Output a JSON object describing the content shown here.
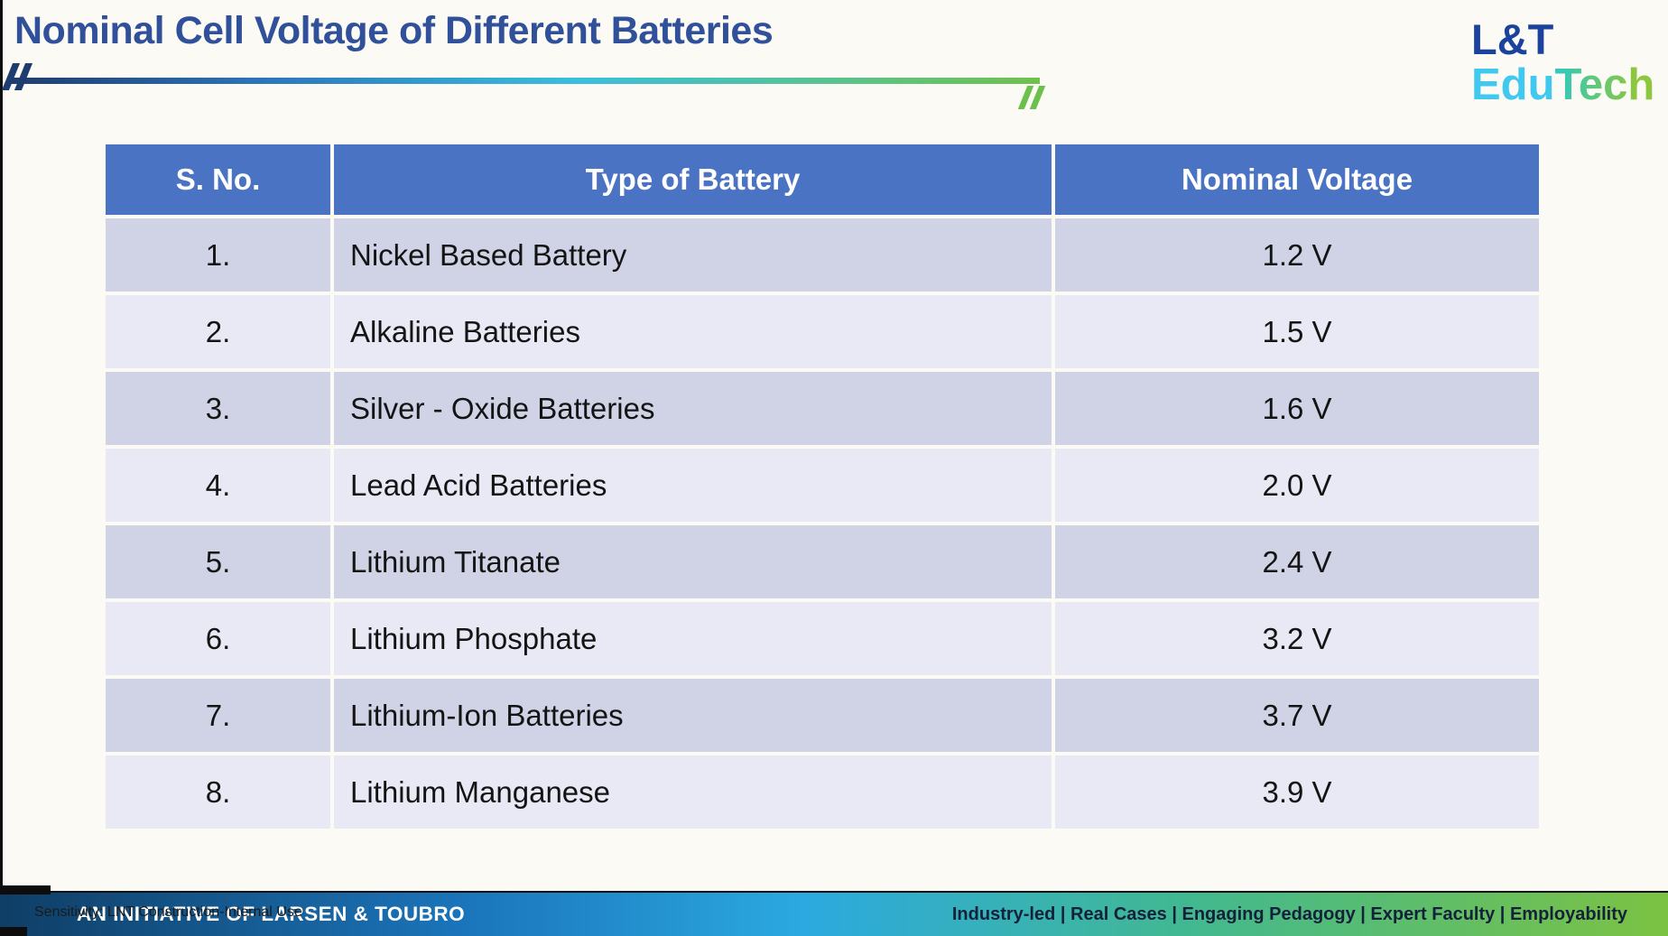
{
  "slide": {
    "title": "Nominal Cell Voltage of Different Batteries"
  },
  "logo": {
    "top": "L&T",
    "bottom_cyan": "Edu",
    "bottom_green": "Tech"
  },
  "table": {
    "headers": {
      "sno": "S. No.",
      "type": "Type of Battery",
      "voltage": "Nominal Voltage"
    },
    "rows": [
      {
        "sno": "1.",
        "type": "Nickel Based Battery",
        "voltage": "1.2 V"
      },
      {
        "sno": "2.",
        "type": "Alkaline Batteries",
        "voltage": "1.5 V"
      },
      {
        "sno": "3.",
        "type": "Silver - Oxide Batteries",
        "voltage": "1.6 V"
      },
      {
        "sno": "4.",
        "type": "Lead Acid Batteries",
        "voltage": "2.0 V"
      },
      {
        "sno": "5.",
        "type": "Lithium Titanate",
        "voltage": "2.4 V"
      },
      {
        "sno": "6.",
        "type": "Lithium Phosphate",
        "voltage": "3.2 V"
      },
      {
        "sno": "7.",
        "type": "Lithium-Ion Batteries",
        "voltage": "3.7 V"
      },
      {
        "sno": "8.",
        "type": "Lithium Manganese",
        "voltage": "3.9 V"
      }
    ]
  },
  "chart_data": {
    "type": "table",
    "title": "Nominal Cell Voltage of Different Batteries",
    "columns": [
      "S. No.",
      "Type of Battery",
      "Nominal Voltage"
    ],
    "categories": [
      "Nickel Based Battery",
      "Alkaline Batteries",
      "Silver - Oxide Batteries",
      "Lead Acid Batteries",
      "Lithium Titanate",
      "Lithium Phosphate",
      "Lithium-Ion Batteries",
      "Lithium Manganese"
    ],
    "values": [
      1.2,
      1.5,
      1.6,
      2.0,
      2.4,
      3.2,
      3.7,
      3.9
    ],
    "value_unit": "V"
  },
  "footer": {
    "initiative": "AN INITIATIVE OF LARSEN & TOUBRO",
    "tagline": "Industry-led | Real Cases | Engaging Pedagogy | Expert Faculty | Employability",
    "sensitivity": "Sensitivity: LNT Construction-Internal Use"
  },
  "colors": {
    "title_text": "#30509A",
    "table_header_bg": "#4A73C4",
    "row_dark": "#CFD3E5",
    "row_light": "#E8E9F4",
    "accent_navy": "#1E3C6E",
    "accent_cyan": "#3ABFDD",
    "accent_green": "#70C14D",
    "logo_blue": "#1B429C",
    "logo_cyan": "#41C8EE",
    "logo_green": "#8DC63F"
  }
}
